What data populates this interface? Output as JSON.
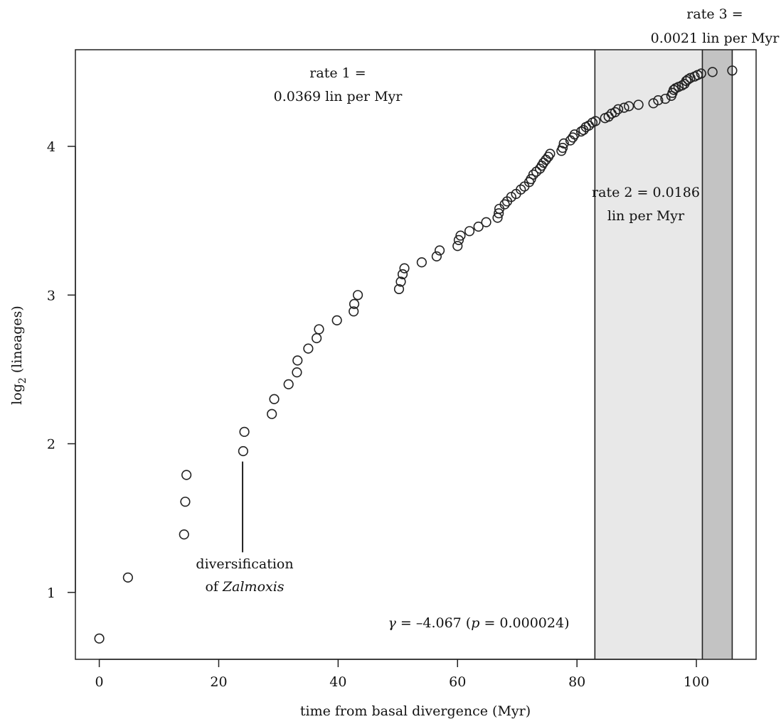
{
  "chart_data": {
    "type": "scatter",
    "xlabel": "time from basal divergence (Myr)",
    "ylabel_main": "log",
    "ylabel_sub": "2",
    "ylabel_rest": " (lineages)",
    "xlim": [
      -4,
      110
    ],
    "ylim": [
      0.55,
      4.65
    ],
    "x_ticks": [
      0,
      20,
      40,
      60,
      80,
      100
    ],
    "y_ticks": [
      1,
      2,
      3,
      4
    ],
    "grid": false,
    "legend": "none",
    "shift_lines": [
      83,
      101,
      106
    ],
    "regions": [
      {
        "from": 83,
        "to": 101,
        "color": "#e8e8e8"
      },
      {
        "from": 101,
        "to": 106,
        "color": "#c3c3c3"
      }
    ],
    "rate1_line1": "rate 1 =",
    "rate1_line2": "0.0369 lin per Myr",
    "rate2_line1": "rate 2 = 0.0186",
    "rate2_line2": "lin per Myr",
    "rate3_line1": "rate 3 =",
    "rate3_line2": "0.0021 lin per Myr",
    "event_line1": "diversification",
    "event_line2_prefix": "of ",
    "event_line2_italic": "Zalmoxis",
    "event_marker": {
      "x": 24,
      "y_from": 1.27,
      "y_to": 1.88
    },
    "gamma_symbol": "γ",
    "gamma_value": " = –4.067 (",
    "gamma_p_symbol": "p",
    "gamma_p_value": " = 0.000024)",
    "points": [
      [
        0.0,
        0.69
      ],
      [
        4.8,
        1.1
      ],
      [
        14.2,
        1.39
      ],
      [
        14.4,
        1.61
      ],
      [
        14.6,
        1.79
      ],
      [
        24.1,
        1.95
      ],
      [
        24.3,
        2.08
      ],
      [
        28.9,
        2.2
      ],
      [
        29.3,
        2.3
      ],
      [
        31.7,
        2.4
      ],
      [
        33.1,
        2.48
      ],
      [
        33.2,
        2.56
      ],
      [
        35.0,
        2.64
      ],
      [
        36.4,
        2.71
      ],
      [
        36.8,
        2.77
      ],
      [
        39.8,
        2.83
      ],
      [
        42.6,
        2.89
      ],
      [
        42.7,
        2.94
      ],
      [
        43.3,
        3.0
      ],
      [
        50.2,
        3.04
      ],
      [
        50.5,
        3.09
      ],
      [
        50.8,
        3.14
      ],
      [
        51.1,
        3.18
      ],
      [
        54.0,
        3.22
      ],
      [
        56.5,
        3.26
      ],
      [
        57.0,
        3.3
      ],
      [
        60.0,
        3.33
      ],
      [
        60.2,
        3.37
      ],
      [
        60.5,
        3.4
      ],
      [
        62.0,
        3.43
      ],
      [
        63.5,
        3.46
      ],
      [
        64.8,
        3.49
      ],
      [
        66.7,
        3.52
      ],
      [
        66.9,
        3.55
      ],
      [
        67.0,
        3.58
      ],
      [
        67.9,
        3.61
      ],
      [
        68.3,
        3.63
      ],
      [
        69.0,
        3.66
      ],
      [
        69.8,
        3.68
      ],
      [
        70.6,
        3.71
      ],
      [
        71.2,
        3.73
      ],
      [
        72.0,
        3.76
      ],
      [
        72.3,
        3.78
      ],
      [
        72.7,
        3.81
      ],
      [
        73.2,
        3.83
      ],
      [
        73.8,
        3.85
      ],
      [
        74.1,
        3.87
      ],
      [
        74.4,
        3.89
      ],
      [
        74.8,
        3.91
      ],
      [
        75.2,
        3.93
      ],
      [
        75.5,
        3.95
      ],
      [
        77.4,
        3.97
      ],
      [
        77.6,
        3.99
      ],
      [
        77.8,
        4.02
      ],
      [
        78.9,
        4.04
      ],
      [
        79.3,
        4.06
      ],
      [
        79.6,
        4.08
      ],
      [
        80.7,
        4.1
      ],
      [
        81.1,
        4.11
      ],
      [
        81.5,
        4.13
      ],
      [
        82.0,
        4.14
      ],
      [
        82.6,
        4.16
      ],
      [
        83.1,
        4.17
      ],
      [
        84.7,
        4.19
      ],
      [
        85.3,
        4.2
      ],
      [
        85.8,
        4.22
      ],
      [
        86.4,
        4.23
      ],
      [
        86.9,
        4.25
      ],
      [
        87.9,
        4.26
      ],
      [
        88.7,
        4.27
      ],
      [
        90.3,
        4.28
      ],
      [
        92.8,
        4.29
      ],
      [
        93.6,
        4.31
      ],
      [
        94.8,
        4.32
      ],
      [
        95.8,
        4.34
      ],
      [
        96.0,
        4.36
      ],
      [
        96.2,
        4.38
      ],
      [
        96.5,
        4.39
      ],
      [
        97.0,
        4.4
      ],
      [
        97.6,
        4.41
      ],
      [
        98.0,
        4.42
      ],
      [
        98.3,
        4.44
      ],
      [
        98.6,
        4.45
      ],
      [
        99.0,
        4.46
      ],
      [
        99.7,
        4.47
      ],
      [
        100.2,
        4.48
      ],
      [
        100.8,
        4.49
      ],
      [
        102.7,
        4.5
      ],
      [
        106.0,
        4.51
      ]
    ]
  }
}
